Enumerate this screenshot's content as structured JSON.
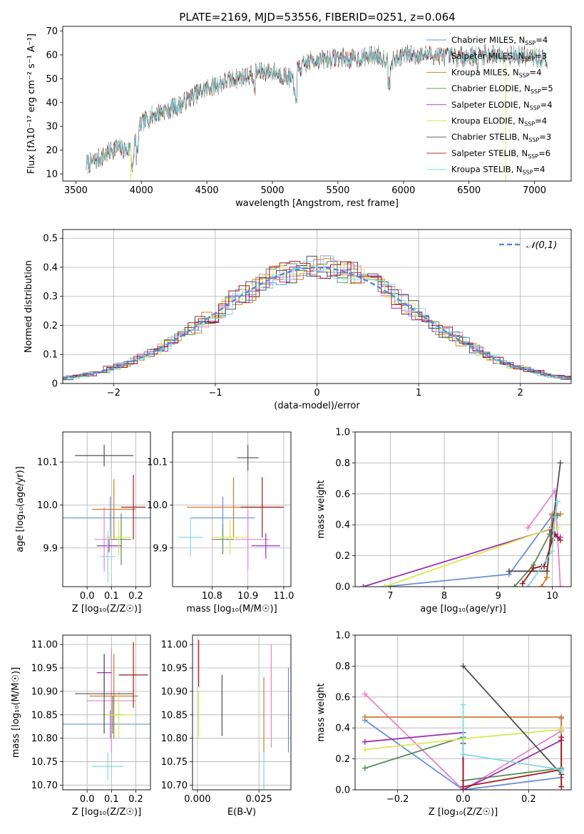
{
  "title": "PLATE=2169, MJD=53556, FIBERID=0251, z=0.064",
  "colors": {
    "Chabrier MILES": "#6a8fd8",
    "Salpeter MILES": "#e882c8",
    "Kroupa MILES": "#d0782a",
    "Chabrier ELODIE": "#5a8a5a",
    "Salpeter ELODIE": "#9a30b0",
    "Kroupa ELODIE": "#d8e850",
    "Chabrier STELIB": "#505050",
    "Salpeter STELIB": "#a01818",
    "Kroupa STELIB": "#80d8e0"
  },
  "models": [
    {
      "name": "Chabrier MILES",
      "nssp": "4"
    },
    {
      "name": "Salpeter MILES",
      "nssp": "3"
    },
    {
      "name": "Kroupa MILES",
      "nssp": "4"
    },
    {
      "name": "Chabrier ELODIE",
      "nssp": "5"
    },
    {
      "name": "Salpeter ELODIE",
      "nssp": "4"
    },
    {
      "name": "Kroupa ELODIE",
      "nssp": "4"
    },
    {
      "name": "Chabrier STELIB",
      "nssp": "3"
    },
    {
      "name": "Salpeter STELIB",
      "nssp": "6"
    },
    {
      "name": "Kroupa STELIB",
      "nssp": "4"
    }
  ],
  "chart_data": [
    {
      "id": "spectrum",
      "type": "line",
      "xlabel": "wavelength [Angstrom, rest frame]",
      "ylabel": "Flux [fλ10⁻¹⁷ erg cm⁻² s⁻¹ A⁻¹]",
      "xlim": [
        3400,
        7280
      ],
      "ylim": [
        7,
        72
      ],
      "xticks": [
        3500,
        4000,
        4500,
        5000,
        5500,
        6000,
        6500,
        7000
      ],
      "yticks": [
        10,
        20,
        30,
        40,
        50,
        60,
        70
      ],
      "legend": "right",
      "envelope": [
        [
          3580,
          14
        ],
        [
          3700,
          17
        ],
        [
          3800,
          21
        ],
        [
          3900,
          20
        ],
        [
          3950,
          24
        ],
        [
          4000,
          31
        ],
        [
          4100,
          35
        ],
        [
          4200,
          37
        ],
        [
          4300,
          39
        ],
        [
          4400,
          43
        ],
        [
          4500,
          46
        ],
        [
          4600,
          48
        ],
        [
          4700,
          50
        ],
        [
          4800,
          51
        ],
        [
          4900,
          53
        ],
        [
          5000,
          53
        ],
        [
          5150,
          50
        ],
        [
          5200,
          54
        ],
        [
          5300,
          58
        ],
        [
          5400,
          58
        ],
        [
          5500,
          59
        ],
        [
          5600,
          58
        ],
        [
          5700,
          59
        ],
        [
          5800,
          60
        ],
        [
          5900,
          57
        ],
        [
          6000,
          60
        ],
        [
          6200,
          60
        ],
        [
          6400,
          59
        ],
        [
          6600,
          60
        ],
        [
          6800,
          60
        ],
        [
          7000,
          59
        ],
        [
          7100,
          58
        ]
      ]
    },
    {
      "id": "residuals",
      "type": "histogram",
      "xlabel": "(data-model)/error",
      "ylabel": "Normed distribution",
      "xlim": [
        -2.5,
        2.5
      ],
      "ylim": [
        0,
        0.53
      ],
      "xticks": [
        -2,
        -1,
        0,
        1,
        2
      ],
      "yticks": [
        0,
        0.1,
        0.2,
        0.3,
        0.4,
        0.5
      ],
      "grid": true,
      "legend": "top-right",
      "reference": {
        "label": "𝒩(0,1)",
        "mean": 0,
        "sd": 1
      }
    },
    {
      "id": "age_vs_Z",
      "type": "errorbar",
      "xlabel": "Z [log₁₀(Z/Z☉)]",
      "ylabel": "age  [log₁₀(age/yr)]",
      "xlim": [
        -0.1,
        0.26
      ],
      "ylim": [
        9.81,
        10.17
      ],
      "xticks": [
        0.0,
        0.1,
        0.2
      ],
      "yticks": [
        9.9,
        10.0,
        10.1
      ],
      "grid": true,
      "points": [
        {
          "model": "Chabrier MILES",
          "x": 0.095,
          "y": 9.97,
          "xerr": 0.2,
          "yerr": 0.05
        },
        {
          "model": "Salpeter MILES",
          "x": 0.07,
          "y": 9.92,
          "xerr": 0.04,
          "yerr": 0.075
        },
        {
          "model": "Kroupa MILES",
          "x": 0.11,
          "y": 9.99,
          "xerr": 0.09,
          "yerr": 0.07
        },
        {
          "model": "Chabrier ELODIE",
          "x": 0.14,
          "y": 9.92,
          "xerr": 0.04,
          "yerr": 0.06
        },
        {
          "model": "Salpeter ELODIE",
          "x": 0.09,
          "y": 9.905,
          "xerr": 0.05,
          "yerr": 0.015
        },
        {
          "model": "Kroupa ELODIE",
          "x": 0.13,
          "y": 9.925,
          "xerr": 0.05,
          "yerr": 0.04
        },
        {
          "model": "Chabrier STELIB",
          "x": 0.07,
          "y": 10.115,
          "xerr": 0.12,
          "yerr": 0.025
        },
        {
          "model": "Salpeter STELIB",
          "x": 0.19,
          "y": 9.995,
          "xerr": 0.05,
          "yerr": 0.075
        },
        {
          "model": "Kroupa STELIB",
          "x": 0.085,
          "y": 9.88,
          "xerr": 0.03,
          "yerr": 0.06
        }
      ]
    },
    {
      "id": "age_vs_mass",
      "type": "errorbar",
      "xlabel": "mass [log₁₀(M/M☉)]",
      "ylabel": "",
      "xlim": [
        10.69,
        11.02
      ],
      "ylim": [
        9.81,
        10.17
      ],
      "xticks": [
        10.8,
        10.9,
        11.0
      ],
      "yticks": [
        9.9,
        10.0,
        10.1
      ],
      "grid": true,
      "points": [
        {
          "model": "Chabrier MILES",
          "x": 10.83,
          "y": 9.97,
          "xerr": 0.09,
          "yerr": 0.05
        },
        {
          "model": "Salpeter MILES",
          "x": 10.9,
          "y": 9.92,
          "xerr": 0.06,
          "yerr": 0.07
        },
        {
          "model": "Kroupa MILES",
          "x": 10.86,
          "y": 9.995,
          "xerr": 0.13,
          "yerr": 0.07
        },
        {
          "model": "Chabrier ELODIE",
          "x": 10.83,
          "y": 9.92,
          "xerr": 0.03,
          "yerr": 0.035
        },
        {
          "model": "Salpeter ELODIE",
          "x": 10.95,
          "y": 9.905,
          "xerr": 0.04,
          "yerr": 0.03
        },
        {
          "model": "Kroupa ELODIE",
          "x": 10.85,
          "y": 9.925,
          "xerr": 0.05,
          "yerr": 0.04
        },
        {
          "model": "Chabrier STELIB",
          "x": 10.9,
          "y": 10.11,
          "xerr": 0.03,
          "yerr": 0.03
        },
        {
          "model": "Salpeter STELIB",
          "x": 10.94,
          "y": 9.995,
          "xerr": 0.06,
          "yerr": 0.07
        },
        {
          "model": "Kroupa STELIB",
          "x": 10.74,
          "y": 9.925,
          "xerr": 0.035,
          "yerr": 0.045
        }
      ]
    },
    {
      "id": "weight_vs_age",
      "type": "line",
      "xlabel": "age  [log₁₀(age/yr)]",
      "ylabel": "mass weight",
      "xlim": [
        6.35,
        10.35
      ],
      "ylim": [
        0,
        1
      ],
      "xticks": [
        7,
        8,
        9,
        10
      ],
      "yticks": [
        0,
        0.2,
        0.4,
        0.6,
        0.8,
        1.0
      ],
      "grid": true,
      "series": [
        {
          "model": "Chabrier MILES",
          "x": [
            6.9,
            9.2,
            10.0,
            10.1
          ],
          "y": [
            0.0,
            0.08,
            0.46,
            0.46
          ]
        },
        {
          "model": "Salpeter MILES",
          "x": [
            9.55,
            10.05,
            10.15
          ],
          "y": [
            0.38,
            0.62,
            0.0
          ]
        },
        {
          "model": "Kroupa MILES",
          "x": [
            9.8,
            9.9,
            10.0,
            10.15
          ],
          "y": [
            0.0,
            0.06,
            0.47,
            0.47
          ]
        },
        {
          "model": "Chabrier ELODIE",
          "x": [
            9.3,
            9.65,
            9.95,
            10.05,
            10.1
          ],
          "y": [
            0.0,
            0.14,
            0.34,
            0.46,
            0.46
          ]
        },
        {
          "model": "Salpeter ELODIE",
          "x": [
            6.5,
            9.95,
            10.1,
            10.15
          ],
          "y": [
            0.0,
            0.37,
            0.32,
            0.32
          ]
        },
        {
          "model": "Kroupa ELODIE",
          "x": [
            6.9,
            10.0,
            10.1
          ],
          "y": [
            0.0,
            0.38,
            0.38
          ]
        },
        {
          "model": "Chabrier STELIB",
          "x": [
            9.2,
            9.9,
            10.15
          ],
          "y": [
            0.1,
            0.1,
            0.8
          ]
        },
        {
          "model": "Salpeter STELIB",
          "x": [
            9.45,
            9.65,
            9.8,
            9.85,
            10.0,
            10.05,
            10.15
          ],
          "y": [
            0.02,
            0.12,
            0.13,
            0.13,
            0.3,
            0.34,
            0.3
          ]
        },
        {
          "model": "Kroupa STELIB",
          "x": [
            9.55,
            10.0,
            10.05,
            10.1
          ],
          "y": [
            0.0,
            0.23,
            0.45,
            0.55
          ]
        }
      ]
    },
    {
      "id": "mass_vs_Z",
      "type": "errorbar",
      "xlabel": "Z [log₁₀(Z/Z☉)]",
      "ylabel": "mass [log₁₀(M/M☉)]",
      "xlim": [
        -0.1,
        0.26
      ],
      "ylim": [
        10.69,
        11.02
      ],
      "xticks": [
        0.0,
        0.1,
        0.2
      ],
      "yticks": [
        10.7,
        10.75,
        10.8,
        10.85,
        10.9,
        10.95,
        11.0
      ],
      "grid": true,
      "points": [
        {
          "model": "Chabrier MILES",
          "x": 0.095,
          "y": 10.83,
          "xerr": 0.2,
          "yerr": 0.03
        },
        {
          "model": "Salpeter MILES",
          "x": 0.1,
          "y": 10.88,
          "xerr": 0.1,
          "yerr": 0.11
        },
        {
          "model": "Kroupa MILES",
          "x": 0.11,
          "y": 10.89,
          "xerr": 0.1,
          "yerr": 0.09
        },
        {
          "model": "Chabrier ELODIE",
          "x": 0.105,
          "y": 10.85,
          "xerr": 0.04,
          "yerr": 0.04
        },
        {
          "model": "Salpeter ELODIE",
          "x": 0.07,
          "y": 10.94,
          "xerr": 0.03,
          "yerr": 0.04
        },
        {
          "model": "Kroupa ELODIE",
          "x": 0.13,
          "y": 10.85,
          "xerr": 0.06,
          "yerr": 0.05
        },
        {
          "model": "Chabrier STELIB",
          "x": 0.07,
          "y": 10.895,
          "xerr": 0.12,
          "yerr": 0.085
        },
        {
          "model": "Salpeter STELIB",
          "x": 0.19,
          "y": 10.935,
          "xerr": 0.06,
          "yerr": 0.07
        },
        {
          "model": "Kroupa STELIB",
          "x": 0.085,
          "y": 10.74,
          "xerr": 0.065,
          "yerr": 0.03
        }
      ]
    },
    {
      "id": "mass_vs_EBV",
      "type": "errorbar",
      "xlabel": "E(B-V)",
      "ylabel": "",
      "xlim": [
        -0.002,
        0.038
      ],
      "ylim": [
        10.69,
        11.02
      ],
      "xticks": [
        0.0,
        0.025
      ],
      "yticks": [
        10.7,
        10.75,
        10.8,
        10.85,
        10.9,
        10.95,
        11.0
      ],
      "grid": true,
      "points": [
        {
          "model": "Chabrier MILES",
          "x": 0.037,
          "y": 10.86,
          "xerr": 0,
          "yerr": 0.09
        },
        {
          "model": "Salpeter MILES",
          "x": 0.03,
          "y": 10.89,
          "xerr": 0,
          "yerr": 0.11
        },
        {
          "model": "Kroupa MILES",
          "x": 0.027,
          "y": 10.85,
          "xerr": 0,
          "yerr": 0.08
        },
        {
          "model": "Chabrier STELIB",
          "x": 0.01,
          "y": 10.87,
          "xerr": 0,
          "yerr": 0.065
        },
        {
          "model": "Kroupa ELODIE",
          "x": 0.0005,
          "y": 10.85,
          "xerr": 0,
          "yerr": 0.05
        },
        {
          "model": "Salpeter STELIB",
          "x": 0.0005,
          "y": 10.96,
          "xerr": 0,
          "yerr": 0.05
        },
        {
          "model": "Kroupa STELIB",
          "x": 0.027,
          "y": 10.73,
          "xerr": 0,
          "yerr": 0.04
        }
      ]
    },
    {
      "id": "weight_vs_Z",
      "type": "line",
      "xlabel": "Z [log₁₀(Z/Z☉)]",
      "ylabel": "mass weight",
      "xlim": [
        -0.33,
        0.33
      ],
      "ylim": [
        0,
        1
      ],
      "xticks": [
        -0.2,
        0.0,
        0.2
      ],
      "yticks": [
        0,
        0.2,
        0.4,
        0.6,
        0.8,
        1.0
      ],
      "grid": true,
      "series": [
        {
          "model": "Chabrier MILES",
          "x": [
            -0.3,
            0.0,
            0.3,
            0.3
          ],
          "y": [
            0.45,
            0.0,
            0.08,
            0.46
          ]
        },
        {
          "model": "Salpeter MILES",
          "x": [
            -0.3,
            0.0,
            0.3
          ],
          "y": [
            0.62,
            0.0,
            0.38
          ]
        },
        {
          "model": "Kroupa MILES",
          "x": [
            -0.3,
            0.3,
            0.3
          ],
          "y": [
            0.47,
            0.47,
            0.02
          ]
        },
        {
          "model": "Chabrier ELODIE",
          "x": [
            -0.3,
            0.0,
            0.0,
            0.3
          ],
          "y": [
            0.14,
            0.34,
            0.06,
            0.14
          ]
        },
        {
          "model": "Salpeter ELODIE",
          "x": [
            -0.3,
            0.0,
            0.0,
            0.3,
            0.3
          ],
          "y": [
            0.31,
            0.37,
            0.0,
            0.32,
            0.32
          ]
        },
        {
          "model": "Kroupa ELODIE",
          "x": [
            -0.3,
            0.0,
            0.3
          ],
          "y": [
            0.26,
            0.33,
            0.39
          ]
        },
        {
          "model": "Chabrier STELIB",
          "x": [
            0.0,
            0.3
          ],
          "y": [
            0.8,
            0.1
          ]
        },
        {
          "model": "Salpeter STELIB",
          "x": [
            0.0,
            0.0,
            0.3,
            0.3,
            0.3
          ],
          "y": [
            0.3,
            0.02,
            0.13,
            0.34,
            0.02
          ]
        },
        {
          "model": "Kroupa STELIB",
          "x": [
            0.0,
            0.0,
            0.3,
            0.3
          ],
          "y": [
            0.55,
            0.23,
            0.13,
            0.12
          ]
        }
      ]
    }
  ]
}
